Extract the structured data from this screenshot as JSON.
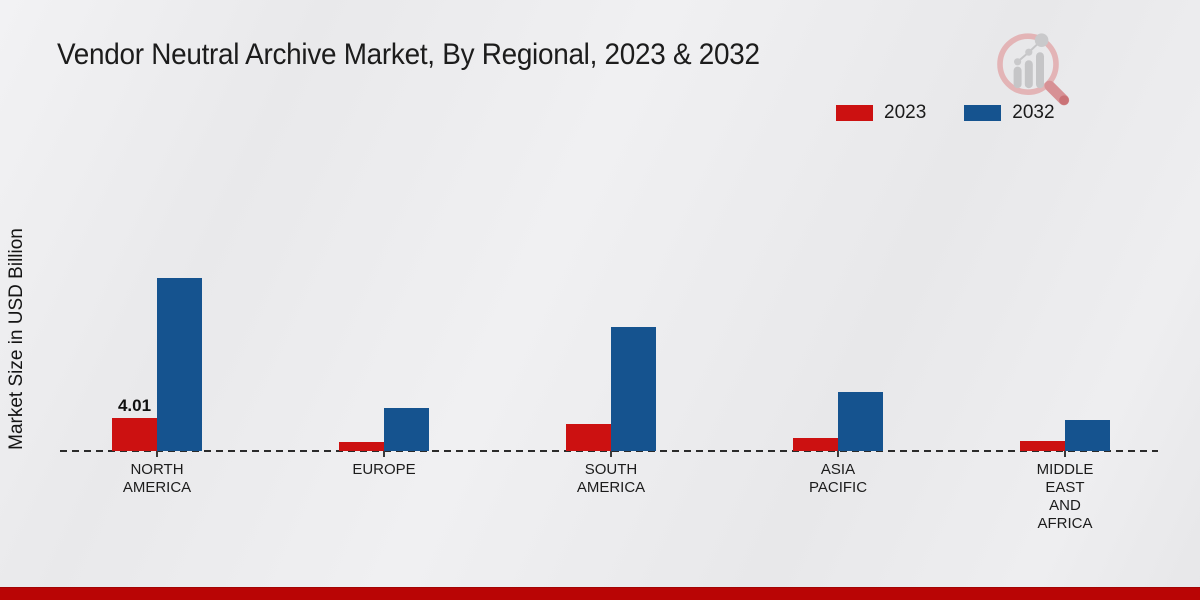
{
  "title": "Vendor Neutral Archive Market, By Regional, 2023 & 2032",
  "legend": [
    {
      "label": "2023",
      "color": "#cc1111"
    },
    {
      "label": "2032",
      "color": "#15538f"
    }
  ],
  "chart_data": {
    "type": "bar",
    "title": "Vendor Neutral Archive Market, By Regional, 2023 & 2032",
    "xlabel": "",
    "ylabel": "Market Size in USD Billion",
    "categories": [
      "NORTH\nAMERICA",
      "EUROPE",
      "SOUTH\nAMERICA",
      "ASIA\nPACIFIC",
      "MIDDLE\nEAST\nAND\nAFRICA"
    ],
    "series": [
      {
        "name": "2023",
        "color": "#cc1111",
        "values": [
          4.01,
          1.1,
          3.3,
          1.6,
          1.2
        ],
        "data_labels": [
          "4.01",
          "",
          "",
          "",
          ""
        ]
      },
      {
        "name": "2032",
        "color": "#15538f",
        "values": [
          21.0,
          5.2,
          15.1,
          7.2,
          3.8
        ],
        "data_labels": [
          "",
          "",
          "",
          "",
          ""
        ]
      }
    ],
    "ylim": [
      0,
      22
    ],
    "grid": false,
    "legend_position": "top-right",
    "baseline_style": "dashed"
  },
  "colors": {
    "series_2023": "#cc1111",
    "series_2032": "#15538f",
    "footer_bar": "#b90505",
    "background": "#ebebed",
    "text": "#1a1a1a"
  },
  "icons": {
    "logo": "magnifier-growth-chart-logo"
  }
}
